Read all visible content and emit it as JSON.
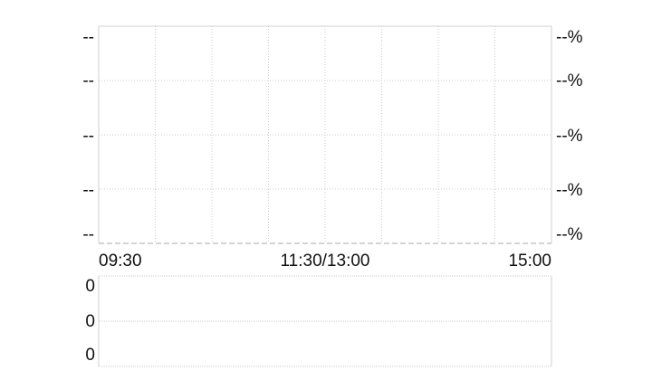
{
  "chart_data": [
    {
      "type": "line",
      "x_tick_labels": [
        "09:30",
        "11:30/13:00",
        "15:00"
      ],
      "left_tick_labels": [
        "--",
        "--",
        "--",
        "--",
        "--"
      ],
      "right_tick_labels": [
        "--%",
        "--%",
        "--%",
        "--%",
        "--%"
      ],
      "series": [],
      "grid": true,
      "vertical_grid_divisions": 8,
      "horizontal_grid_divisions": 4
    },
    {
      "type": "bar",
      "left_tick_labels": [
        "0",
        "0",
        "0"
      ],
      "series": [],
      "grid": true
    }
  ],
  "colors": {
    "border": "#d0d0d0",
    "grid": "#cccccc",
    "text": "#111111"
  }
}
